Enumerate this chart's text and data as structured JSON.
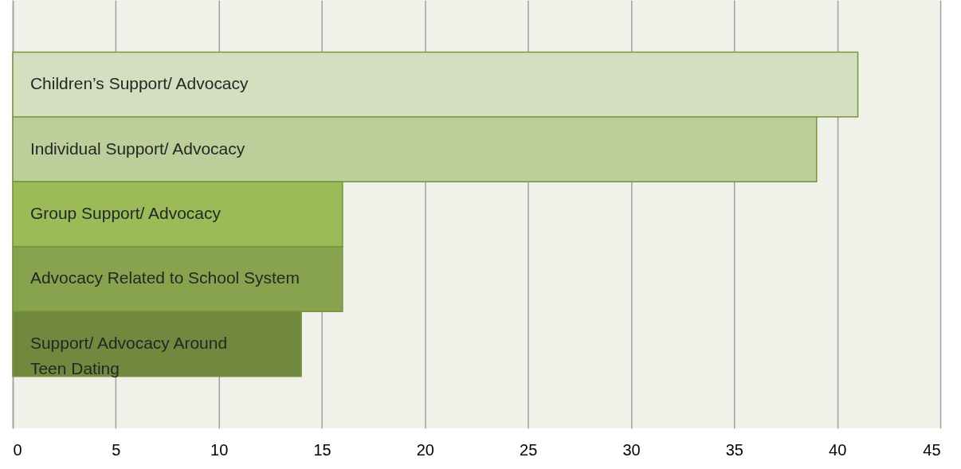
{
  "chart_data": {
    "type": "bar",
    "orientation": "horizontal",
    "categories": [
      "Children’s Support/ Advocacy",
      "Individual Support/ Advocacy",
      "Group Support/ Advocacy",
      "Advocacy Related to School System",
      "Support/ Advocacy Around Teen Dating"
    ],
    "values": [
      41,
      39,
      16,
      16,
      14
    ],
    "colors": [
      "#d3dfbf",
      "#bccf9a",
      "#9bbb59",
      "#87a34d",
      "#71893f"
    ],
    "xlim": [
      0,
      45
    ],
    "xticks": [
      0,
      5,
      10,
      15,
      20,
      25,
      30,
      35,
      40,
      45
    ],
    "grid": "x"
  }
}
